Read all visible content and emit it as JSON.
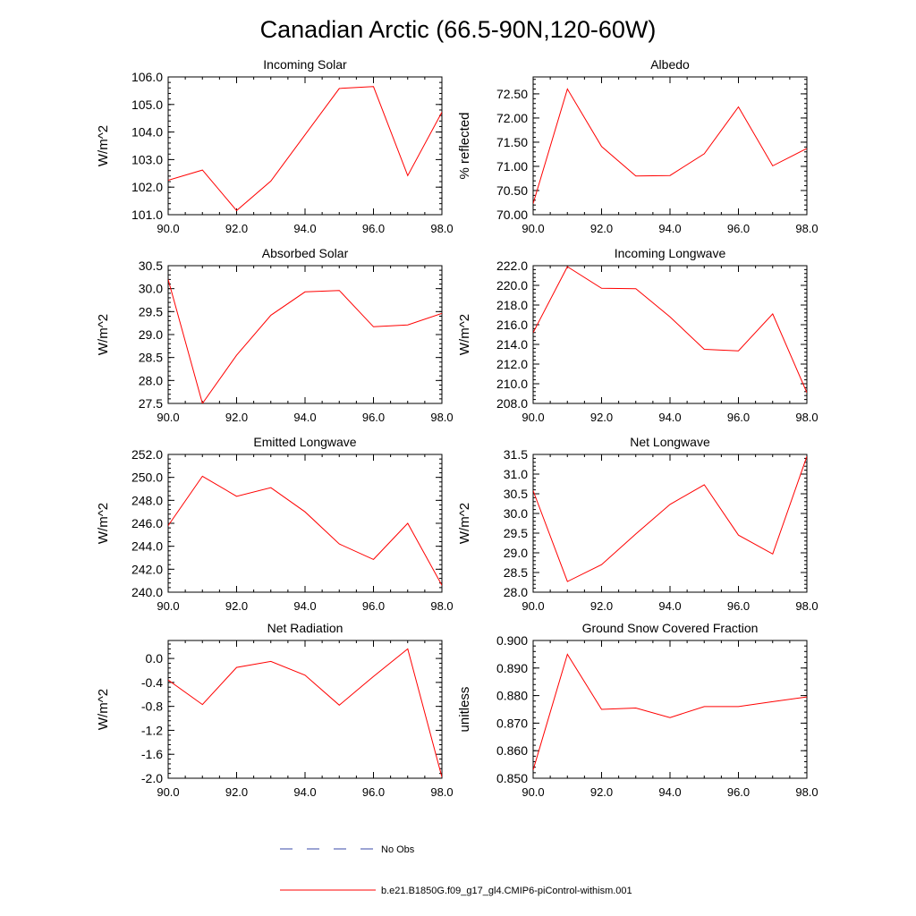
{
  "title": "Canadian Arctic (66.5-90N,120-60W)",
  "colors": {
    "model_line": "#ff0000",
    "obs_line": "#3a4aa8",
    "axis": "#000000"
  },
  "legend": {
    "obs_label": "No Obs",
    "model_label": "b.e21.B1850G.f09_g17_gl4.CMIP6-piControl-withism.001"
  },
  "chart_data": [
    {
      "type": "line",
      "title": "Incoming Solar",
      "ylabel": "W/m^2",
      "xlim": [
        90,
        98
      ],
      "ylim": [
        101.0,
        106.0
      ],
      "xticks": [
        90,
        92,
        94,
        96,
        98
      ],
      "xtick_labels": [
        "90.0",
        "92.0",
        "94.0",
        "96.0",
        "98.0"
      ],
      "yticks": [
        101,
        102,
        103,
        104,
        105,
        106
      ],
      "ytick_labels": [
        "101.0",
        "102.0",
        "103.0",
        "104.0",
        "105.0",
        "106.0"
      ],
      "series": [
        {
          "name": "b.e21.B1850G.f09_g17_gl4.CMIP6-piControl-withism.001",
          "x": [
            90,
            91,
            92,
            93,
            94,
            95,
            96,
            97,
            98
          ],
          "values": [
            102.25,
            102.62,
            101.15,
            102.22,
            103.9,
            105.58,
            105.65,
            102.42,
            104.72
          ]
        }
      ]
    },
    {
      "type": "line",
      "title": "Albedo",
      "ylabel": "% reflected",
      "xlim": [
        90,
        98
      ],
      "ylim": [
        70.0,
        72.85
      ],
      "xticks": [
        90,
        92,
        94,
        96,
        98
      ],
      "xtick_labels": [
        "90.0",
        "92.0",
        "94.0",
        "96.0",
        "98.0"
      ],
      "yticks": [
        70.0,
        70.5,
        71.0,
        71.5,
        72.0,
        72.5
      ],
      "ytick_labels": [
        "70.00",
        "70.50",
        "71.00",
        "71.50",
        "72.00",
        "72.50"
      ],
      "series": [
        {
          "name": "b.e21.B1850G.f09_g17_gl4.CMIP6-piControl-withism.001",
          "x": [
            90,
            91,
            92,
            93,
            94,
            95,
            96,
            97,
            98
          ],
          "values": [
            70.23,
            72.6,
            71.41,
            70.8,
            70.81,
            71.26,
            72.23,
            71.01,
            71.37
          ]
        }
      ]
    },
    {
      "type": "line",
      "title": "Absorbed Solar",
      "ylabel": "W/m^2",
      "xlim": [
        90,
        98
      ],
      "ylim": [
        27.5,
        30.5
      ],
      "xticks": [
        90,
        92,
        94,
        96,
        98
      ],
      "xtick_labels": [
        "90.0",
        "92.0",
        "94.0",
        "96.0",
        "98.0"
      ],
      "yticks": [
        27.5,
        28.0,
        28.5,
        29.0,
        29.5,
        30.0,
        30.5
      ],
      "ytick_labels": [
        "27.5",
        "28.0",
        "28.5",
        "29.0",
        "29.5",
        "30.0",
        "30.5"
      ],
      "series": [
        {
          "name": "b.e21.B1850G.f09_g17_gl4.CMIP6-piControl-withism.001",
          "x": [
            90,
            91,
            92,
            93,
            94,
            95,
            96,
            97,
            98
          ],
          "values": [
            30.2,
            27.5,
            28.55,
            29.42,
            29.93,
            29.96,
            29.17,
            29.21,
            29.46
          ]
        }
      ]
    },
    {
      "type": "line",
      "title": "Incoming Longwave",
      "ylabel": "W/m^2",
      "xlim": [
        90,
        98
      ],
      "ylim": [
        208.0,
        222.0
      ],
      "xticks": [
        90,
        92,
        94,
        96,
        98
      ],
      "xtick_labels": [
        "90.0",
        "92.0",
        "94.0",
        "96.0",
        "98.0"
      ],
      "yticks": [
        208,
        210,
        212,
        214,
        216,
        218,
        220,
        222
      ],
      "ytick_labels": [
        "208.0",
        "210.0",
        "212.0",
        "214.0",
        "216.0",
        "218.0",
        "220.0",
        "222.0"
      ],
      "series": [
        {
          "name": "b.e21.B1850G.f09_g17_gl4.CMIP6-piControl-withism.001",
          "x": [
            90,
            91,
            92,
            93,
            94,
            95,
            96,
            97,
            98
          ],
          "values": [
            215.2,
            221.9,
            219.7,
            219.65,
            216.8,
            213.5,
            213.35,
            217.1,
            209.1
          ]
        }
      ]
    },
    {
      "type": "line",
      "title": "Emitted Longwave",
      "ylabel": "W/m^2",
      "xlim": [
        90,
        98
      ],
      "ylim": [
        240.0,
        252.0
      ],
      "xticks": [
        90,
        92,
        94,
        96,
        98
      ],
      "xtick_labels": [
        "90.0",
        "92.0",
        "94.0",
        "96.0",
        "98.0"
      ],
      "yticks": [
        240,
        242,
        244,
        246,
        248,
        250,
        252
      ],
      "ytick_labels": [
        "240.0",
        "242.0",
        "244.0",
        "246.0",
        "248.0",
        "250.0",
        "252.0"
      ],
      "series": [
        {
          "name": "b.e21.B1850G.f09_g17_gl4.CMIP6-piControl-withism.001",
          "x": [
            90,
            91,
            92,
            93,
            94,
            95,
            96,
            97,
            98
          ],
          "values": [
            245.8,
            250.1,
            248.35,
            249.1,
            247.0,
            244.2,
            242.85,
            246.0,
            240.6
          ]
        }
      ]
    },
    {
      "type": "line",
      "title": "Net Longwave",
      "ylabel": "W/m^2",
      "xlim": [
        90,
        98
      ],
      "ylim": [
        28.0,
        31.5
      ],
      "xticks": [
        90,
        92,
        94,
        96,
        98
      ],
      "xtick_labels": [
        "90.0",
        "92.0",
        "94.0",
        "96.0",
        "98.0"
      ],
      "yticks": [
        28.0,
        28.5,
        29.0,
        29.5,
        30.0,
        30.5,
        31.0,
        31.5
      ],
      "ytick_labels": [
        "28.0",
        "28.5",
        "29.0",
        "29.5",
        "30.0",
        "30.5",
        "31.0",
        "31.5"
      ],
      "series": [
        {
          "name": "b.e21.B1850G.f09_g17_gl4.CMIP6-piControl-withism.001",
          "x": [
            90,
            91,
            92,
            93,
            94,
            95,
            96,
            97,
            98
          ],
          "values": [
            30.58,
            28.27,
            28.7,
            29.48,
            30.23,
            30.73,
            29.45,
            28.97,
            31.45
          ]
        }
      ]
    },
    {
      "type": "line",
      "title": "Net Radiation",
      "ylabel": "W/m^2",
      "xlim": [
        90,
        98
      ],
      "ylim": [
        -2.0,
        0.3
      ],
      "xticks": [
        90,
        92,
        94,
        96,
        98
      ],
      "xtick_labels": [
        "90.0",
        "92.0",
        "94.0",
        "96.0",
        "98.0"
      ],
      "yticks": [
        -2.0,
        -1.6,
        -1.2,
        -0.8,
        -0.4,
        0.0
      ],
      "ytick_labels": [
        "-2.0",
        "-1.6",
        "-1.2",
        "-0.8",
        "-0.4",
        "0.0"
      ],
      "series": [
        {
          "name": "b.e21.B1850G.f09_g17_gl4.CMIP6-piControl-withism.001",
          "x": [
            90,
            91,
            92,
            93,
            94,
            95,
            96,
            97,
            98
          ],
          "values": [
            -0.36,
            -0.77,
            -0.15,
            -0.05,
            -0.28,
            -0.78,
            -0.3,
            0.16,
            -1.98
          ]
        }
      ]
    },
    {
      "type": "line",
      "title": "Ground Snow Covered Fraction",
      "ylabel": "unitless",
      "xlim": [
        90,
        98
      ],
      "ylim": [
        0.85,
        0.9
      ],
      "xticks": [
        90,
        92,
        94,
        96,
        98
      ],
      "xtick_labels": [
        "90.0",
        "92.0",
        "94.0",
        "96.0",
        "98.0"
      ],
      "yticks": [
        0.85,
        0.86,
        0.87,
        0.88,
        0.89,
        0.9
      ],
      "ytick_labels": [
        "0.850",
        "0.860",
        "0.870",
        "0.880",
        "0.890",
        "0.900"
      ],
      "series": [
        {
          "name": "b.e21.B1850G.f09_g17_gl4.CMIP6-piControl-withism.001",
          "x": [
            90,
            91,
            92,
            93,
            94,
            95,
            96,
            97,
            98
          ],
          "values": [
            0.853,
            0.895,
            0.875,
            0.8755,
            0.872,
            0.876,
            0.876,
            0.8778,
            0.8795
          ]
        }
      ]
    }
  ]
}
